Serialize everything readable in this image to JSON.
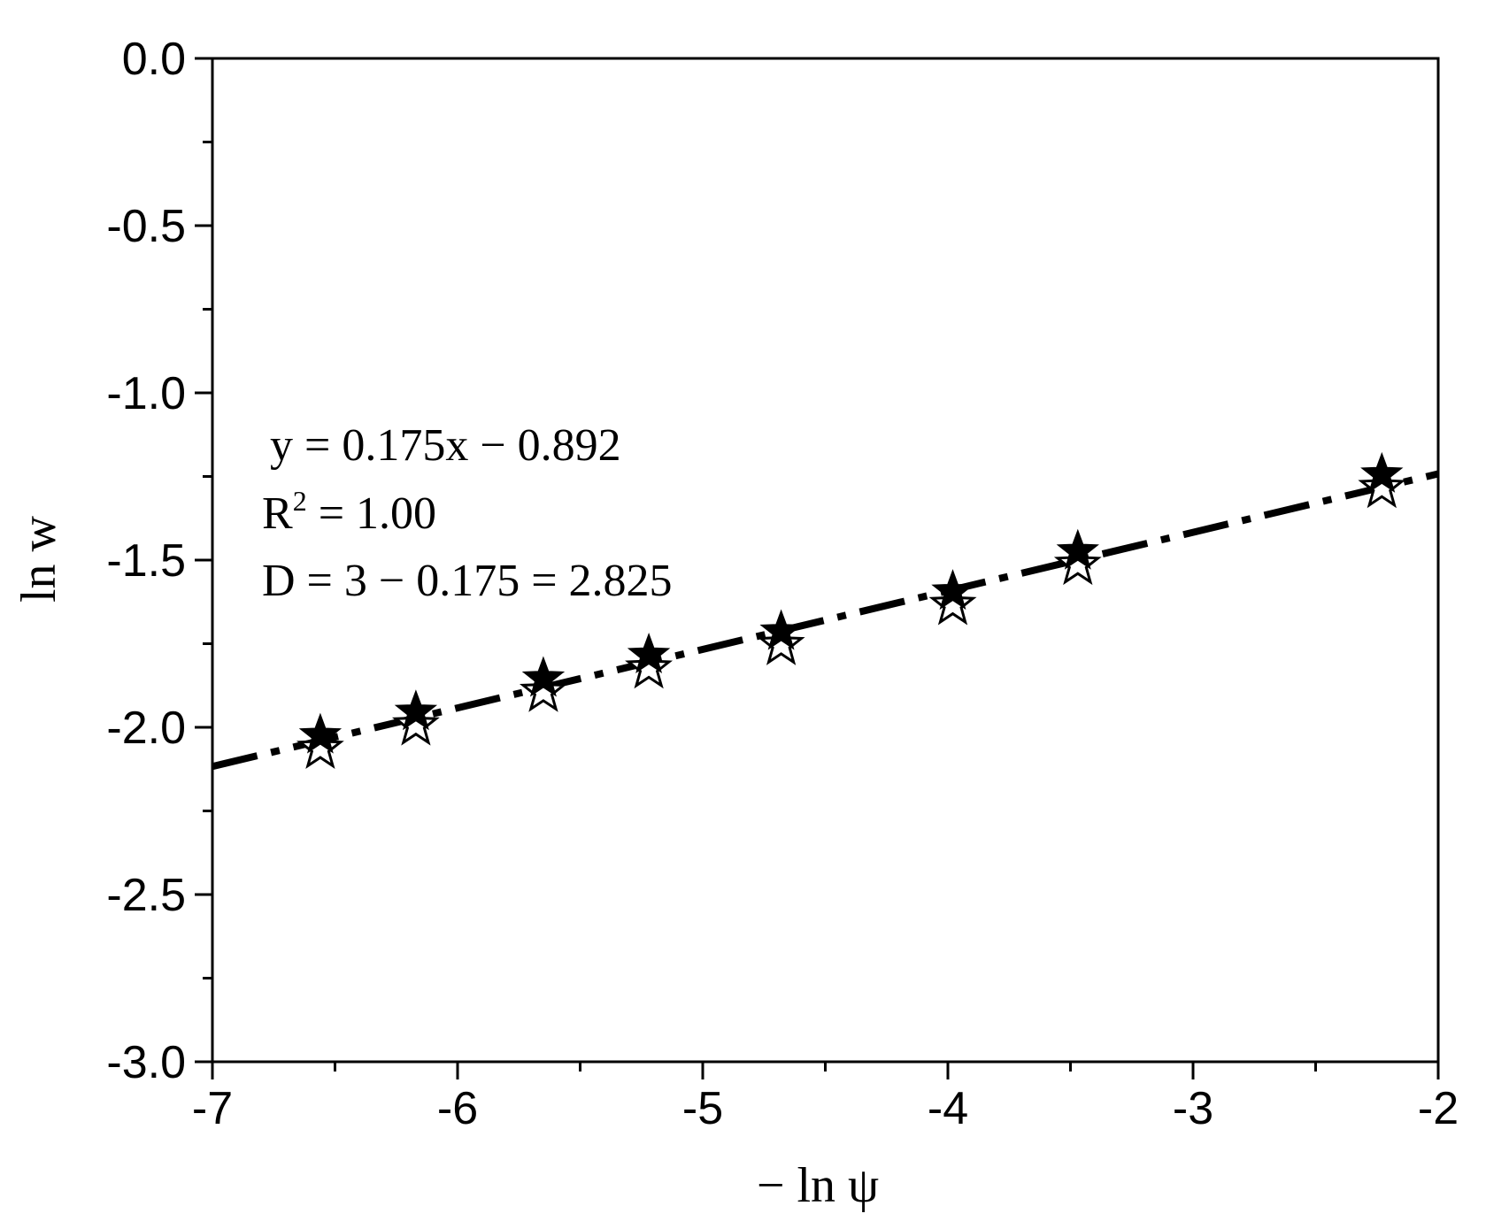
{
  "chart_data": {
    "type": "scatter",
    "title": "",
    "xlabel": "− ln ψ",
    "ylabel": "ln w",
    "xlim": [
      -7,
      -2
    ],
    "ylim": [
      -3.0,
      0.0
    ],
    "x_ticks": [
      "-7",
      "-6",
      "-5",
      "-4",
      "-3",
      "-2"
    ],
    "y_ticks": [
      "0.0",
      "-0.5",
      "-1.0",
      "-1.5",
      "-2.0",
      "-2.5",
      "-3.0"
    ],
    "grid": false,
    "legend": "none",
    "marker": "star",
    "marker_color": "#000000",
    "series": [
      {
        "x": [
          -6.56,
          -6.17,
          -5.65,
          -5.22,
          -4.68,
          -3.98,
          -3.47,
          -2.23
        ],
        "y": [
          -2.04,
          -1.97,
          -1.87,
          -1.8,
          -1.73,
          -1.61,
          -1.49,
          -1.26
        ]
      }
    ],
    "fit_line": {
      "slope": 0.175,
      "intercept": -0.892,
      "style": "dash-dot",
      "color": "#000000"
    },
    "annotations": {
      "equation": "y = 0.175x − 0.892",
      "r2_prefix": "R",
      "r2_sup": "2",
      "r2_rest": " = 1.00",
      "dimension": "D = 3 − 0.175 = 2.825"
    }
  }
}
